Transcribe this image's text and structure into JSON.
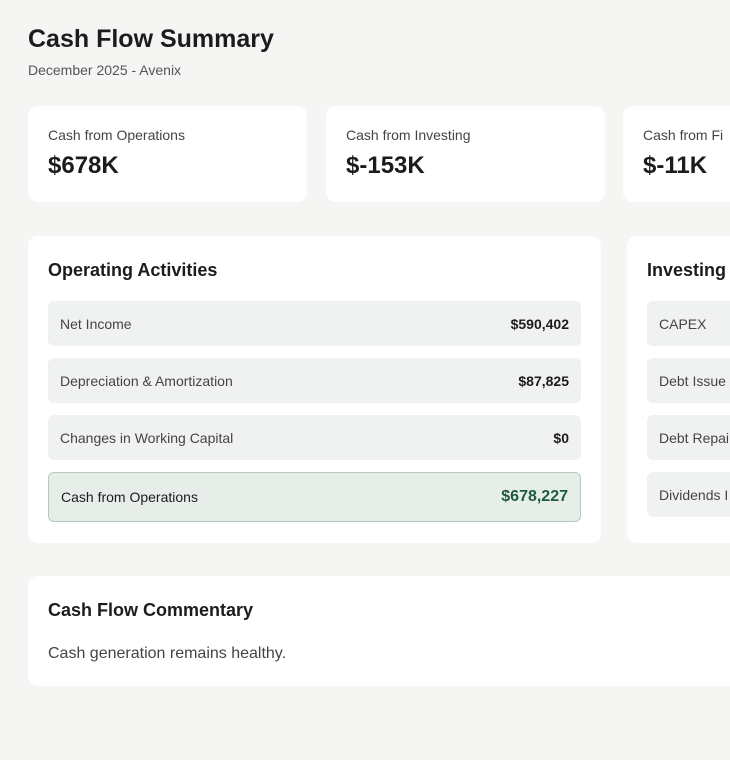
{
  "header": {
    "title": "Cash Flow Summary",
    "subtitle": "December 2025 - Avenix"
  },
  "kpis": [
    {
      "label": "Cash from Operations",
      "value": "$678K"
    },
    {
      "label": "Cash from Investing",
      "value": "$-153K"
    },
    {
      "label": "Cash from Fi",
      "value": "$-11K"
    }
  ],
  "operating": {
    "title": "Operating Activities",
    "rows": [
      {
        "label": "Net Income",
        "value": "$590,402"
      },
      {
        "label": "Depreciation & Amortization",
        "value": "$87,825"
      },
      {
        "label": "Changes in Working Capital",
        "value": "$0"
      }
    ],
    "total": {
      "label": "Cash from Operations",
      "value": "$678,227"
    }
  },
  "investing": {
    "title": "Investing",
    "rows": [
      "CAPEX",
      "Debt Issue",
      "Debt Repai",
      "Dividends I"
    ]
  },
  "commentary": {
    "title": "Cash Flow Commentary",
    "text": "Cash generation remains healthy."
  }
}
